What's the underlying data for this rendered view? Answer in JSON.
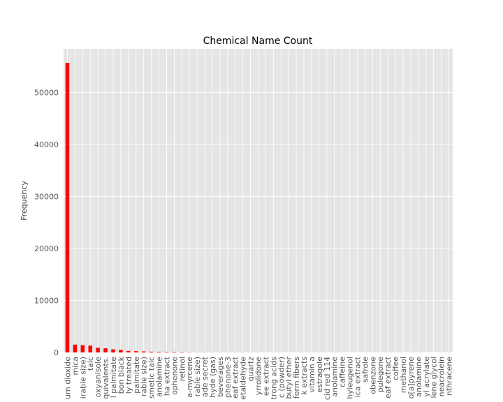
{
  "chart_data": {
    "type": "bar",
    "title": "Chemical Name Count",
    "xlabel": "",
    "ylabel": "Frequency",
    "ylim": [
      0,
      58400
    ],
    "yticks": [
      0,
      10000,
      20000,
      30000,
      40000,
      50000
    ],
    "grid": true,
    "legend": "none",
    "bar_color": "#ff0000",
    "background_color": "#e5e5e5",
    "grid_color": "#ffffff",
    "categories": [
      "um dioxide",
      "mica",
      "irable size)",
      "talc",
      "oxyanisole",
      "quivalents.",
      "l palmitate",
      "bon black",
      "ly treated",
      "palmitate",
      "rable size)",
      "smetic talc",
      "anolamine",
      "ha extract",
      "ophenone",
      "retinol",
      "a-myrcene",
      "rable size)",
      "ade secret",
      "hyde (gas)",
      "beverages",
      "phenone-3",
      "eaf extract",
      "etaldehyde",
      "quartz",
      "yrrolidone",
      "ee extract",
      "trong acids",
      "c (powder)",
      "butyl ether",
      "form fibers",
      "k extracts",
      "vitamin a",
      "estragole",
      "cid red 114",
      "anolamine",
      "caffeine",
      "hyleugenol",
      "ica extract",
      "safrole",
      "obenzone",
      "pulegone",
      "eaf extract",
      "coffee",
      "methanol",
      "o[a]pyrene",
      "anolamine",
      "yl acrylate",
      "lene glycol",
      "neacrolein",
      "nthracene"
    ],
    "values": [
      55700,
      1500,
      1400,
      1300,
      900,
      800,
      600,
      500,
      300,
      250,
      200,
      150,
      120,
      100,
      90,
      80,
      40,
      35,
      30,
      30,
      25,
      25,
      20,
      20,
      15,
      15,
      10,
      10,
      10,
      10,
      8,
      8,
      6,
      6,
      5,
      5,
      5,
      4,
      4,
      4,
      3,
      3,
      3,
      3,
      2,
      2,
      2,
      2,
      1,
      1,
      1
    ]
  }
}
